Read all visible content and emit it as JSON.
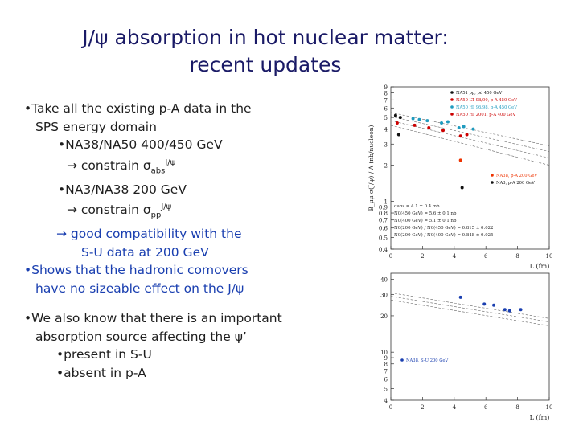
{
  "title": {
    "line1": "J/ψ absorption in hot nuclear matter:",
    "line2": "recent updates"
  },
  "bullets": {
    "b1_l1": "•Take all the existing p-A data in the",
    "b1_l2": "SPS energy domain",
    "b2": "•NA38/NA50 400/450 GeV",
    "b2_arrow": "→ constrain σ",
    "b2_sub": "abs",
    "b2_sup": "J/ψ",
    "b3": "•NA3/NA38 200 GeV",
    "b3_arrow": "→ constrain σ",
    "b3_sub": "pp",
    "b3_sup": "J/ψ",
    "b4_l1": "→ good compatibility with the",
    "b4_l2": "S-U data at 200 GeV",
    "b5_l1": "•Shows that the hadronic comovers",
    "b5_l2": "have no sizeable effect on the J/ψ",
    "b6_l1": "•We also know that there is an important",
    "b6_l2": "absorption source affecting the ψ’",
    "b7": "•present in S-U",
    "b8": "•absent in p-A"
  },
  "chart_data": [
    {
      "type": "scatter",
      "ylabel": "B_μμ σ(J/ψ) / A (nb/nucleon)",
      "xlabel": "L (fm)",
      "xlim": [
        0,
        10
      ],
      "ylim": [
        0.4,
        9
      ],
      "yscale": "log",
      "xticks": [
        0,
        2,
        4,
        6,
        8,
        10
      ],
      "yticks": [
        "0.4",
        "0.5",
        "0.6",
        "0.7",
        "0.8",
        "0.9",
        "1",
        "2",
        "3",
        "4",
        "5",
        "6",
        "7",
        "8",
        "9"
      ],
      "yticks_v": [
        0.4,
        0.5,
        0.6,
        0.7,
        0.8,
        0.9,
        1,
        2,
        3,
        4,
        5,
        6,
        7,
        8,
        9
      ],
      "legend_upper": [
        {
          "label": "NA51 pp, pd 450 GeV",
          "color": "#111111"
        },
        {
          "label": "NA50 LT 98/00, p-A 450 GeV",
          "color": "#cc0000"
        },
        {
          "label": "NA50 HI 96/98, p-A 450 GeV",
          "color": "#1f9bbf"
        },
        {
          "label": "NA50 HI 2001, p-A 400 GeV",
          "color": "#cc0000"
        }
      ],
      "legend_lower": [
        {
          "label": "NA38, p-A 200 GeV",
          "color": "#ee3300"
        },
        {
          "label": "NA3, p-A 200 GeV",
          "color": "#111111"
        }
      ],
      "fit_text": [
        "σabs = 4.1 ± 0.4 mb",
        "N0(450 GeV) = 5.6 ± 0.1 nb",
        "N0(400 GeV) = 5.1 ± 0.1 nb",
        "N0(200 GeV) / N0(450 GeV) = 0.815 ± 0.022",
        "N0(200 GeV) / N0(400 GeV) = 0.848 ± 0.025"
      ],
      "points": [
        {
          "x": 0.3,
          "y": 5.2,
          "c": "#111111"
        },
        {
          "x": 0.6,
          "y": 5.0,
          "c": "#111111"
        },
        {
          "x": 1.4,
          "y": 4.9,
          "c": "#1f9bbf"
        },
        {
          "x": 1.8,
          "y": 4.8,
          "c": "#1f9bbf"
        },
        {
          "x": 2.3,
          "y": 4.7,
          "c": "#1f9bbf"
        },
        {
          "x": 3.2,
          "y": 4.5,
          "c": "#1f9bbf"
        },
        {
          "x": 3.6,
          "y": 4.6,
          "c": "#1f9bbf"
        },
        {
          "x": 4.3,
          "y": 4.1,
          "c": "#1f9bbf"
        },
        {
          "x": 4.6,
          "y": 4.2,
          "c": "#1f9bbf"
        },
        {
          "x": 5.2,
          "y": 4.0,
          "c": "#1f9bbf"
        },
        {
          "x": 0.4,
          "y": 4.5,
          "c": "#cc0000"
        },
        {
          "x": 1.5,
          "y": 4.3,
          "c": "#cc0000"
        },
        {
          "x": 2.4,
          "y": 4.1,
          "c": "#cc0000"
        },
        {
          "x": 3.3,
          "y": 3.9,
          "c": "#cc0000"
        },
        {
          "x": 4.4,
          "y": 3.5,
          "c": "#cc0000"
        },
        {
          "x": 4.8,
          "y": 3.6,
          "c": "#cc0000"
        },
        {
          "x": 0.5,
          "y": 3.6,
          "c": "#111111"
        },
        {
          "x": 4.4,
          "y": 2.2,
          "c": "#ee3300"
        },
        {
          "x": 4.5,
          "y": 1.3,
          "c": "#111111"
        }
      ]
    },
    {
      "type": "scatter",
      "xlabel": "L (fm)",
      "xlim": [
        0,
        10
      ],
      "ylim": [
        4,
        45
      ],
      "yscale": "log",
      "xticks": [
        0,
        2,
        4,
        6,
        8,
        10
      ],
      "yticks": [
        "4",
        "5",
        "6",
        "7",
        "8",
        "9",
        "10",
        "20",
        "30",
        "40"
      ],
      "yticks_v": [
        4,
        5,
        6,
        7,
        8,
        9,
        10,
        20,
        30,
        40
      ],
      "legend": [
        {
          "label": "NA38, S-U 200 GeV",
          "color": "#1a3fb0"
        }
      ],
      "points": [
        {
          "x": 4.4,
          "y": 28.5,
          "c": "#1a3fb0"
        },
        {
          "x": 5.9,
          "y": 25.0,
          "c": "#1a3fb0"
        },
        {
          "x": 6.5,
          "y": 24.5,
          "c": "#1a3fb0"
        },
        {
          "x": 7.2,
          "y": 22.5,
          "c": "#1a3fb0"
        },
        {
          "x": 7.5,
          "y": 22.0,
          "c": "#1a3fb0"
        },
        {
          "x": 8.2,
          "y": 22.5,
          "c": "#1a3fb0"
        }
      ]
    }
  ]
}
